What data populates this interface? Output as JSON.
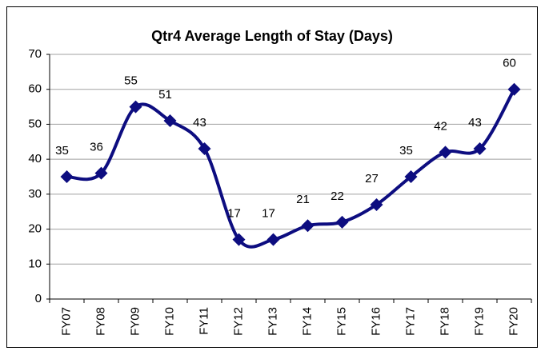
{
  "chart_data": {
    "type": "line",
    "title": "Qtr4 Average Length of Stay (Days)",
    "categories": [
      "FY07",
      "FY08",
      "FY09",
      "FY10",
      "FY11",
      "FY12",
      "FY13",
      "FY14",
      "FY15",
      "FY16",
      "FY17",
      "FY18",
      "FY19",
      "FY20"
    ],
    "values": [
      35,
      36,
      55,
      51,
      43,
      17,
      17,
      21,
      22,
      27,
      35,
      42,
      43,
      60
    ],
    "color": "#0d0d80",
    "smooth": true,
    "marker": "diamond",
    "data_labels": true,
    "ylim": [
      0,
      70
    ],
    "yticks": [
      0,
      10,
      20,
      30,
      40,
      50,
      60,
      70
    ],
    "grid": true
  }
}
